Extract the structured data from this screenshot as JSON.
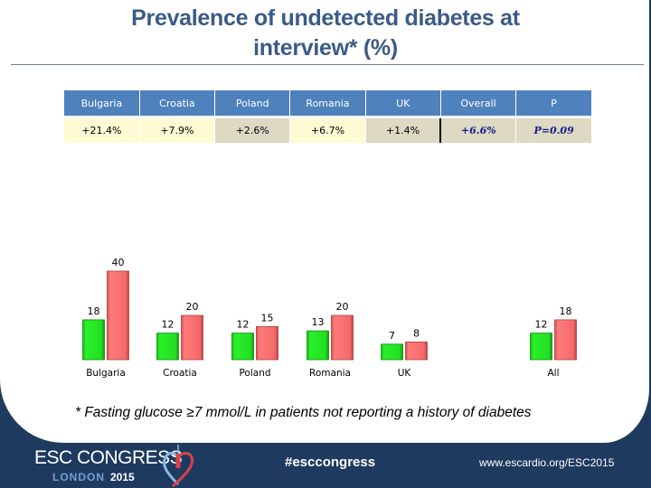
{
  "title": {
    "line1": "Prevalence of undetected diabetes at",
    "line2": "interview* (%)"
  },
  "table": {
    "headers": [
      "Bulgaria",
      "Croatia",
      "Poland",
      "Romania",
      "UK",
      "Overall",
      "P"
    ],
    "row": [
      "+21.4%",
      "+7.9%",
      "+2.6%",
      "+6.7%",
      "+1.4%",
      "+6.6%",
      "P=0.09"
    ]
  },
  "colors": {
    "series_green": "#22e022",
    "series_red": "#f46a6a",
    "header_blue": "#4f81bd",
    "title_blue": "#3b5b86",
    "footer_navy": "#1f3a5f"
  },
  "chart_data": {
    "type": "bar",
    "title": "",
    "xlabel": "",
    "ylabel": "",
    "ylim": [
      0,
      40
    ],
    "grid": false,
    "legend": "none",
    "categories": [
      "Bulgaria",
      "Croatia",
      "Poland",
      "Romania",
      "UK",
      "All"
    ],
    "series": [
      {
        "name": "green",
        "color": "#22e022",
        "values": [
          18,
          12,
          12,
          13,
          7,
          12
        ]
      },
      {
        "name": "red",
        "color": "#f46a6a",
        "values": [
          40,
          20,
          15,
          20,
          8,
          18
        ]
      }
    ]
  },
  "footnote": "* Fasting glucose ≥7 mmol/L in patients not reporting a history of diabetes",
  "footer": {
    "congress": "ESC CONGRESS",
    "city": "LONDON",
    "year": "2015",
    "hashtag": "#esccongress",
    "url": "www.escardio.org/ESC2015",
    "logo_icon": "heart-tower-icon"
  }
}
